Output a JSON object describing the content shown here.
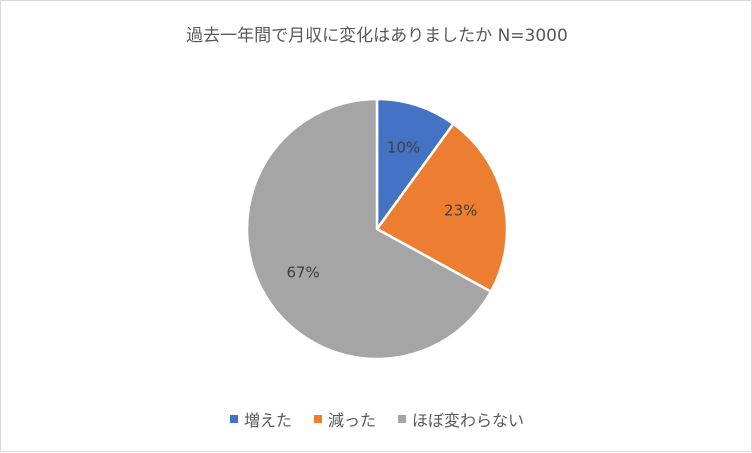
{
  "chart_data": {
    "type": "pie",
    "title": "過去一年間で月収に変化はありましたか N=3000",
    "categories": [
      "増えた",
      "減った",
      "ほぼ変わらない"
    ],
    "values": [
      10,
      23,
      67
    ],
    "data_labels": [
      "10%",
      "23%",
      "67%"
    ],
    "colors": [
      "#4472C4",
      "#ED7D31",
      "#A5A5A5"
    ],
    "legend_position": "bottom"
  }
}
